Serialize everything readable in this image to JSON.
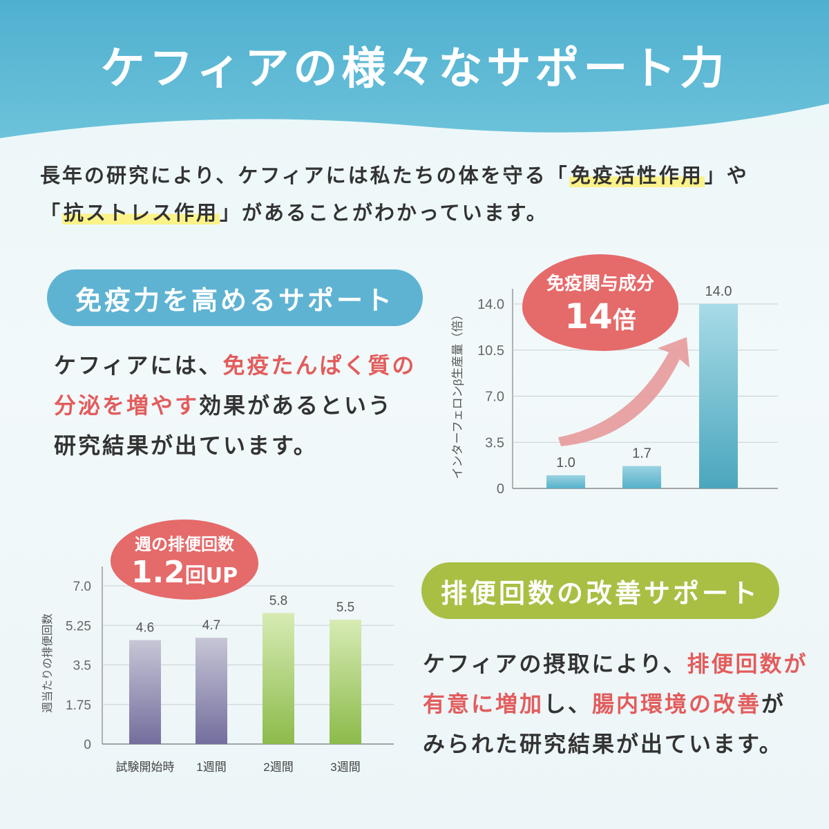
{
  "header": {
    "title": "ケフィアの様々なサポート力",
    "bg_color": "#5fb8d2"
  },
  "intro": {
    "l1_a": "長年の研究により、ケフィアには私たちの体を守る「",
    "l1_hl": "免疫活性作用",
    "l1_b": "」や",
    "l2_a": "「",
    "l2_hl": "抗ストレス作用",
    "l2_b": "」があることがわかっています。"
  },
  "immune": {
    "pill_label": "免疫力を高めるサポート",
    "text_l1_a": "ケフィアには、",
    "text_l1_red": "免疫たんぱく質の",
    "text_l2_red": "分泌を増やす",
    "text_l2_b": "効果があるという",
    "text_l3": "研究結果が出ています。",
    "badge_line1": "免疫関与成分",
    "badge_num": "14",
    "badge_unit": "倍"
  },
  "bowel": {
    "pill_label": "排便回数の改善サポート",
    "text_l1_a": "ケフィアの摂取により、",
    "text_l1_red": "排便回数が",
    "text_l2_red": "有意に増加",
    "text_l2_b": "し、",
    "text_l2_red2": "腸内環境の改善",
    "text_l2_c": "が",
    "text_l3": "みられた研究結果が出ています。",
    "badge_line1": "週の排便回数",
    "badge_num": "1.2",
    "badge_unit": "回UP"
  },
  "chart_data": [
    {
      "type": "bar",
      "categories": [
        "",
        "",
        ""
      ],
      "values": [
        1.0,
        1.7,
        14.0
      ],
      "value_labels": [
        "1.0",
        "1.7",
        "14.0"
      ],
      "ylabel": "インターフェロンβ生産量（倍）",
      "yticks": [
        "0",
        "3.5",
        "7.0",
        "10.5",
        "14.0"
      ],
      "ylim": [
        0,
        14
      ],
      "grid": true,
      "colors": [
        "#5ab5cc",
        "#5ab5cc",
        "#4ea8bf"
      ]
    },
    {
      "type": "bar",
      "categories": [
        "試験開始時",
        "1週間",
        "2週間",
        "3週間"
      ],
      "values": [
        4.6,
        4.7,
        5.8,
        5.5
      ],
      "value_labels": [
        "4.6",
        "4.7",
        "5.8",
        "5.5"
      ],
      "ylabel": "週当たりの排便回数",
      "yticks": [
        "0",
        "1.75",
        "3.5",
        "5.25",
        "7.0"
      ],
      "ylim": [
        0,
        7
      ],
      "grid": true,
      "colors": [
        "#7d78a3",
        "#7d78a3",
        "#8fbd4e",
        "#8fbd4e"
      ]
    }
  ]
}
